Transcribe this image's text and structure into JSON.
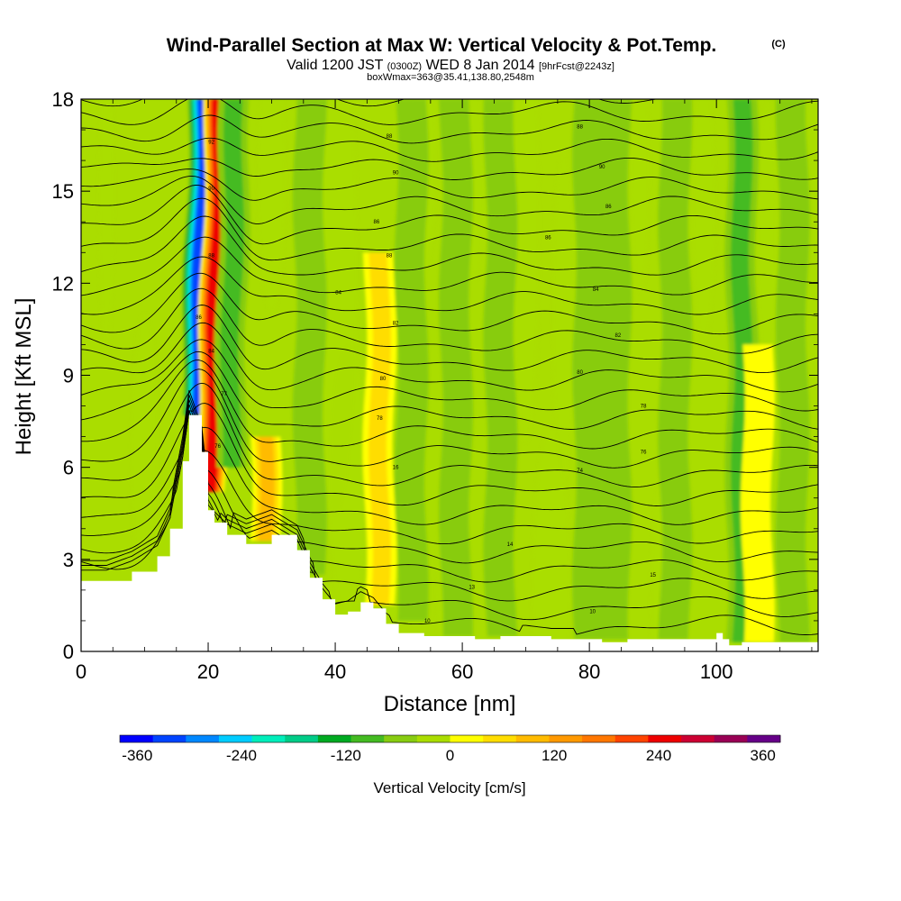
{
  "chart_data": {
    "type": "heatmap",
    "title": "Wind-Parallel Section at Max W: Vertical Velocity & Pot.Temp.",
    "title_mark": "(C)",
    "subtitle_parts": {
      "valid_prefix": "Valid 1200 JST",
      "utc": "(0300Z)",
      "date": "WED 8 Jan 2014",
      "forecast": "[9hrFcst@2243z]"
    },
    "box_info": "boxWmax=363@35.41,138.80,2548m",
    "xlabel": "Distance [nm]",
    "ylabel": "Height [Kft MSL]",
    "xlim": [
      0,
      116
    ],
    "ylim": [
      0,
      18
    ],
    "xticks": [
      0,
      20,
      40,
      60,
      80,
      100
    ],
    "yticks": [
      0,
      3,
      6,
      9,
      12,
      15,
      18
    ],
    "colorbar": {
      "label": "Vertical Velocity [cm/s]",
      "min": -380,
      "max": 380,
      "step": 40,
      "ticks": [
        -360,
        -240,
        -120,
        0,
        120,
        240,
        360
      ],
      "colors": [
        "#0000ff",
        "#0044ff",
        "#0088ff",
        "#00ccff",
        "#00eebb",
        "#00cc88",
        "#00aa22",
        "#44bb22",
        "#88cc11",
        "#aadd00",
        "#ffff00",
        "#ffdd00",
        "#ffbb00",
        "#ff9900",
        "#ff7700",
        "#ff4400",
        "#ee0000",
        "#cc0033",
        "#990055",
        "#660088"
      ]
    },
    "terrain_kft": {
      "x": [
        0,
        4,
        8,
        12,
        14,
        16,
        17,
        19,
        20,
        21,
        23,
        26,
        30,
        34,
        36,
        38,
        40,
        42,
        44,
        46,
        48,
        50,
        54,
        58,
        62,
        66,
        70,
        74,
        78,
        82,
        86,
        90,
        94,
        98,
        100,
        101,
        102,
        104,
        108,
        112,
        116
      ],
      "y": [
        2.3,
        2.3,
        2.6,
        3.1,
        4.0,
        6.2,
        7.7,
        6.5,
        4.6,
        4.2,
        3.8,
        3.5,
        3.8,
        3.3,
        2.4,
        1.7,
        1.2,
        1.3,
        1.6,
        1.4,
        0.9,
        0.6,
        0.5,
        0.5,
        0.4,
        0.5,
        0.5,
        0.4,
        0.4,
        0.3,
        0.4,
        0.4,
        0.4,
        0.4,
        0.6,
        0.4,
        0.2,
        0.3,
        0.3,
        0.3,
        0.3
      ]
    },
    "w_features_cms": [
      {
        "x": 18.0,
        "w": -320,
        "top": 18,
        "bottom": 7.7
      },
      {
        "x": 20.7,
        "w": 300,
        "top": 18,
        "bottom": 5.2
      },
      {
        "x": 23.5,
        "w": -90,
        "top": 18,
        "bottom": 6.0
      },
      {
        "x": 29.0,
        "w": 120,
        "top": 7.0,
        "bottom": 3.6
      },
      {
        "x": 36.0,
        "w": -40,
        "top": 18,
        "bottom": 2.5
      },
      {
        "x": 47.0,
        "w": 80,
        "top": 13.0,
        "bottom": 1.5
      },
      {
        "x": 52.0,
        "w": -30,
        "top": 18,
        "bottom": 1.0
      },
      {
        "x": 59.0,
        "w": -40,
        "top": 18,
        "bottom": 0.5
      },
      {
        "x": 66.0,
        "w": -30,
        "top": 18,
        "bottom": 0.5
      },
      {
        "x": 80.0,
        "w": -30,
        "top": 18,
        "bottom": 0.4
      },
      {
        "x": 84.0,
        "w": -50,
        "top": 18,
        "bottom": 0.4
      },
      {
        "x": 93.5,
        "w": -40,
        "top": 18,
        "bottom": 0.4
      },
      {
        "x": 104.0,
        "w": -80,
        "top": 18,
        "bottom": 0.3
      },
      {
        "x": 106.5,
        "w": 60,
        "top": 10.0,
        "bottom": 0.3
      },
      {
        "x": 112.0,
        "w": -40,
        "top": 18,
        "bottom": 0.3
      }
    ],
    "theta_contours": {
      "labels": [
        {
          "x": 20.5,
          "y": 16.6,
          "text": "92"
        },
        {
          "x": 48.5,
          "y": 16.8,
          "text": "88"
        },
        {
          "x": 78.5,
          "y": 17.1,
          "text": "88"
        },
        {
          "x": 49.5,
          "y": 15.6,
          "text": "90"
        },
        {
          "x": 82.0,
          "y": 15.8,
          "text": "90"
        },
        {
          "x": 20.5,
          "y": 15.1,
          "text": "90"
        },
        {
          "x": 46.5,
          "y": 14.0,
          "text": "86"
        },
        {
          "x": 83.0,
          "y": 14.5,
          "text": "86"
        },
        {
          "x": 20.5,
          "y": 12.9,
          "text": "88"
        },
        {
          "x": 48.5,
          "y": 12.9,
          "text": "88"
        },
        {
          "x": 73.5,
          "y": 13.5,
          "text": "86"
        },
        {
          "x": 40.5,
          "y": 11.7,
          "text": "84"
        },
        {
          "x": 81.0,
          "y": 11.8,
          "text": "84"
        },
        {
          "x": 18.5,
          "y": 10.9,
          "text": "86"
        },
        {
          "x": 20.5,
          "y": 9.8,
          "text": "84"
        },
        {
          "x": 49.5,
          "y": 10.7,
          "text": "82"
        },
        {
          "x": 84.5,
          "y": 10.3,
          "text": "82"
        },
        {
          "x": 47.5,
          "y": 8.9,
          "text": "80"
        },
        {
          "x": 78.5,
          "y": 9.1,
          "text": "80"
        },
        {
          "x": 22.5,
          "y": 8.4,
          "text": "77"
        },
        {
          "x": 47.0,
          "y": 7.6,
          "text": "78"
        },
        {
          "x": 88.5,
          "y": 8.0,
          "text": "78"
        },
        {
          "x": 21.5,
          "y": 6.7,
          "text": "76"
        },
        {
          "x": 49.5,
          "y": 6.0,
          "text": "16"
        },
        {
          "x": 88.5,
          "y": 6.5,
          "text": "76"
        },
        {
          "x": 78.5,
          "y": 5.9,
          "text": "74"
        },
        {
          "x": 67.5,
          "y": 3.5,
          "text": "14"
        },
        {
          "x": 90.0,
          "y": 2.5,
          "text": "15"
        },
        {
          "x": 36.0,
          "y": 2.6,
          "text": "14"
        },
        {
          "x": 61.5,
          "y": 2.1,
          "text": "13"
        },
        {
          "x": 80.5,
          "y": 1.3,
          "text": "10"
        },
        {
          "x": 54.5,
          "y": 1.0,
          "text": "10"
        }
      ]
    }
  }
}
